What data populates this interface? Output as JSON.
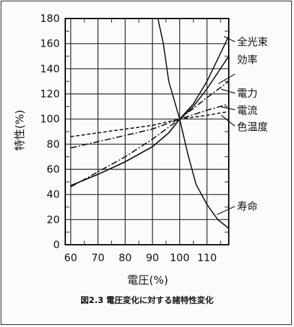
{
  "chart_data": {
    "type": "line",
    "title": "",
    "xlabel": "電圧(%)",
    "ylabel": "特性(%)",
    "xlim": [
      58,
      118
    ],
    "ylim": [
      0,
      180
    ],
    "x_ticks": [
      60,
      70,
      80,
      90,
      100,
      110
    ],
    "y_ticks": [
      0,
      20,
      40,
      60,
      80,
      100,
      120,
      140,
      160,
      180
    ],
    "grid": true,
    "series": [
      {
        "name": "全光束",
        "style": "solid",
        "points": [
          [
            60,
            47
          ],
          [
            70,
            56
          ],
          [
            80,
            66
          ],
          [
            90,
            78
          ],
          [
            96,
            89
          ],
          [
            100,
            100
          ],
          [
            105,
            112
          ],
          [
            110,
            130
          ],
          [
            118,
            166
          ]
        ]
      },
      {
        "name": "効率",
        "style": "solid",
        "points": [
          [
            60,
            47
          ],
          [
            70,
            56
          ],
          [
            80,
            66
          ],
          [
            90,
            78
          ],
          [
            96,
            89
          ],
          [
            100,
            100
          ],
          [
            105,
            110
          ],
          [
            110,
            124
          ],
          [
            118,
            150
          ]
        ]
      },
      {
        "name": "電力",
        "style": "dashdot",
        "points": [
          [
            60,
            46
          ],
          [
            70,
            58
          ],
          [
            80,
            70
          ],
          [
            90,
            84
          ],
          [
            100,
            100
          ],
          [
            110,
            117
          ],
          [
            118,
            130
          ]
        ]
      },
      {
        "name": "電流",
        "style": "dashdot",
        "points": [
          [
            60,
            77
          ],
          [
            70,
            82
          ],
          [
            80,
            87
          ],
          [
            90,
            92
          ],
          [
            100,
            100
          ],
          [
            110,
            107
          ],
          [
            118,
            112
          ]
        ]
      },
      {
        "name": "色温度",
        "style": "dashed",
        "points": [
          [
            60,
            86
          ],
          [
            70,
            89
          ],
          [
            80,
            92
          ],
          [
            90,
            95
          ],
          [
            100,
            100
          ],
          [
            110,
            103
          ],
          [
            118,
            106
          ]
        ]
      },
      {
        "name": "寿命",
        "style": "solid",
        "points": [
          [
            92,
            180
          ],
          [
            94,
            160
          ],
          [
            96,
            130
          ],
          [
            100,
            100
          ],
          [
            103,
            72
          ],
          [
            106,
            48
          ],
          [
            110,
            32
          ],
          [
            114,
            20
          ],
          [
            118,
            13
          ]
        ]
      }
    ],
    "caption": "図2.3 電圧変化に対する諸特性変化"
  }
}
